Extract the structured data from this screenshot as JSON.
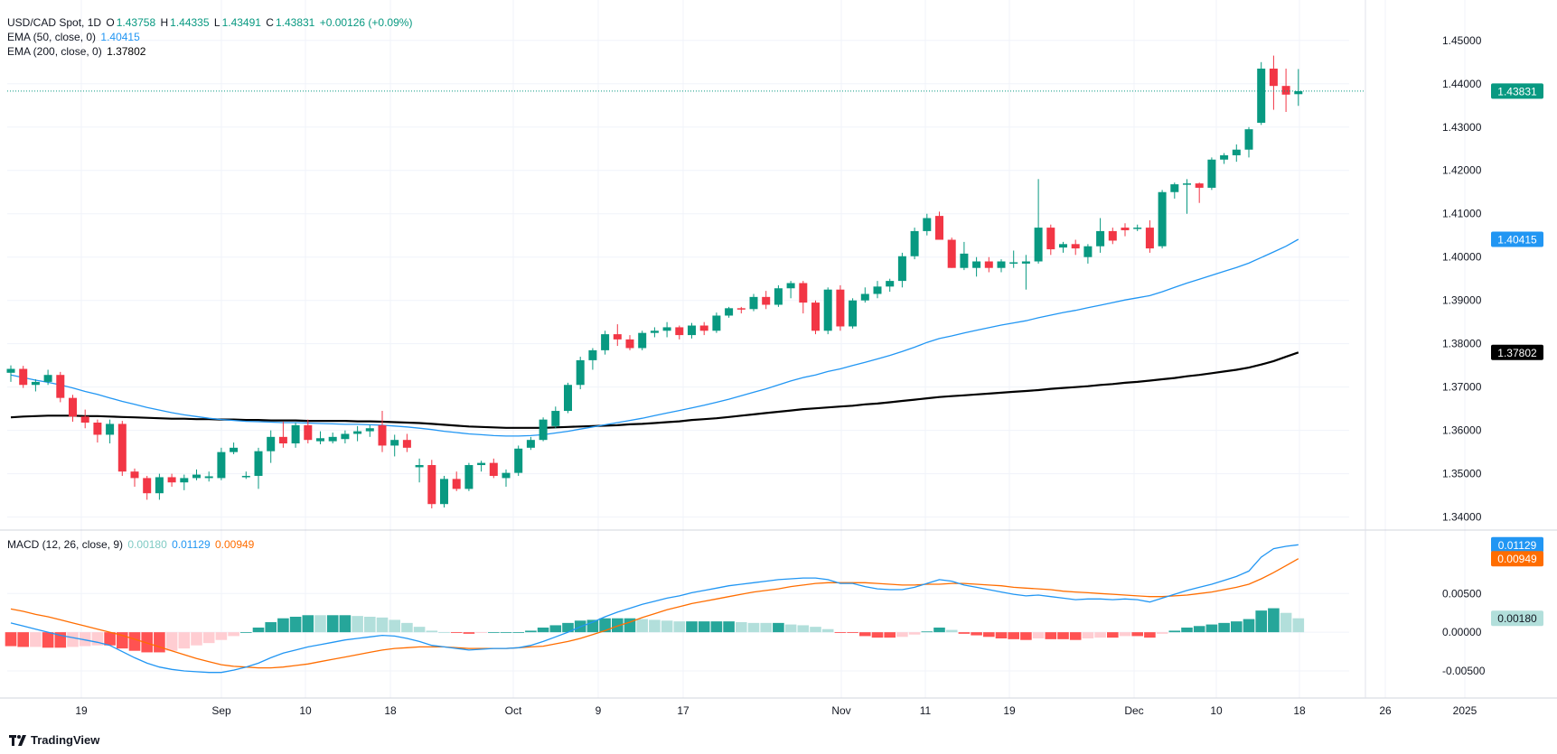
{
  "legend": {
    "symbol": "USD/CAD Spot, 1D",
    "o_label": "O",
    "o": "1.43758",
    "h_label": "H",
    "h": "1.44335",
    "l_label": "L",
    "l": "1.43491",
    "c_label": "C",
    "c": "1.43831",
    "change": "+0.00126 (+0.09%)",
    "ema50_label": "EMA (50, close, 0)",
    "ema50": "1.40415",
    "ema200_label": "EMA (200, close, 0)",
    "ema200": "1.37802",
    "macd_label": "MACD (12, 26, close, 9)",
    "macd_hist": "0.00180",
    "macd_line": "0.01129",
    "macd_signal": "0.00949"
  },
  "brand": "TradingView",
  "colors": {
    "up": "#089981",
    "down": "#f23645",
    "ema50": "#2196f3",
    "ema200": "#000000",
    "macd": "#2196f3",
    "signal": "#ff6d00",
    "hist_up_strong": "#26a69a",
    "hist_up_weak": "#b2dfdb",
    "hist_down_strong": "#ff5252",
    "hist_down_weak": "#ffcdd2"
  },
  "chart_data": [
    {
      "type": "candlestick",
      "title": "USD/CAD Spot, 1D",
      "x_ticks": [
        "19",
        "Sep",
        "10",
        "18",
        "Oct",
        "9",
        "17",
        "Nov",
        "11",
        "19",
        "Dec",
        "10",
        "18",
        "26",
        "2025"
      ],
      "y_ticks": [
        "1.34000",
        "1.35000",
        "1.36000",
        "1.37000",
        "1.38000",
        "1.39000",
        "1.40000",
        "1.41000",
        "1.42000",
        "1.43000",
        "1.44000",
        "1.45000"
      ],
      "ylim": [
        1.337,
        1.4535
      ],
      "last_price": "1.43831",
      "ohlc": [
        [
          1.3733,
          1.375,
          1.3712,
          1.3742
        ],
        [
          1.3742,
          1.3749,
          1.3698,
          1.3705
        ],
        [
          1.3705,
          1.3718,
          1.369,
          1.3712
        ],
        [
          1.3712,
          1.374,
          1.3705,
          1.3728
        ],
        [
          1.3728,
          1.3735,
          1.3665,
          1.3675
        ],
        [
          1.3675,
          1.3682,
          1.362,
          1.3632
        ],
        [
          1.3632,
          1.3648,
          1.3605,
          1.3618
        ],
        [
          1.3618,
          1.3625,
          1.3572,
          1.359
        ],
        [
          1.359,
          1.3625,
          1.357,
          1.3615
        ],
        [
          1.3615,
          1.3622,
          1.3495,
          1.3505
        ],
        [
          1.3505,
          1.3512,
          1.347,
          1.349
        ],
        [
          1.349,
          1.3495,
          1.344,
          1.3455
        ],
        [
          1.3455,
          1.35,
          1.344,
          1.3492
        ],
        [
          1.3492,
          1.35,
          1.347,
          1.348
        ],
        [
          1.348,
          1.3498,
          1.3462,
          1.349
        ],
        [
          1.349,
          1.351,
          1.3485,
          1.3498
        ],
        [
          1.349,
          1.3505,
          1.3482,
          1.3494
        ],
        [
          1.349,
          1.356,
          1.3485,
          1.355
        ],
        [
          1.355,
          1.3572,
          1.3545,
          1.356
        ],
        [
          1.3495,
          1.3505,
          1.3488,
          1.3495
        ],
        [
          1.3495,
          1.356,
          1.3465,
          1.3552
        ],
        [
          1.3552,
          1.36,
          1.3525,
          1.3585
        ],
        [
          1.3585,
          1.362,
          1.356,
          1.357
        ],
        [
          1.357,
          1.3618,
          1.356,
          1.3612
        ],
        [
          1.3612,
          1.3625,
          1.357,
          1.3578
        ],
        [
          1.3575,
          1.3598,
          1.3568,
          1.3582
        ],
        [
          1.3575,
          1.3595,
          1.357,
          1.3585
        ],
        [
          1.358,
          1.36,
          1.357,
          1.3592
        ],
        [
          1.3592,
          1.361,
          1.3575,
          1.3598
        ],
        [
          1.3598,
          1.3612,
          1.3585,
          1.3605
        ],
        [
          1.3612,
          1.3645,
          1.355,
          1.3565
        ],
        [
          1.3565,
          1.359,
          1.354,
          1.3578
        ],
        [
          1.3578,
          1.3592,
          1.355,
          1.356
        ],
        [
          1.3515,
          1.3535,
          1.348,
          1.352
        ],
        [
          1.352,
          1.3532,
          1.342,
          1.343
        ],
        [
          1.343,
          1.3495,
          1.3422,
          1.3488
        ],
        [
          1.3488,
          1.3505,
          1.346,
          1.3465
        ],
        [
          1.3465,
          1.3525,
          1.346,
          1.352
        ],
        [
          1.352,
          1.353,
          1.3505,
          1.3525
        ],
        [
          1.3525,
          1.3535,
          1.349,
          1.3495
        ],
        [
          1.349,
          1.351,
          1.347,
          1.3502
        ],
        [
          1.3502,
          1.3565,
          1.3495,
          1.3558
        ],
        [
          1.356,
          1.3585,
          1.3555,
          1.3578
        ],
        [
          1.3578,
          1.363,
          1.3575,
          1.3625
        ],
        [
          1.361,
          1.3655,
          1.3605,
          1.3645
        ],
        [
          1.3645,
          1.371,
          1.364,
          1.3705
        ],
        [
          1.3705,
          1.377,
          1.3695,
          1.3762
        ],
        [
          1.3762,
          1.379,
          1.374,
          1.3785
        ],
        [
          1.3785,
          1.383,
          1.3775,
          1.3822
        ],
        [
          1.3822,
          1.3845,
          1.3795,
          1.381
        ],
        [
          1.381,
          1.382,
          1.3785,
          1.379
        ],
        [
          1.379,
          1.383,
          1.3785,
          1.3825
        ],
        [
          1.3825,
          1.3838,
          1.3815,
          1.383
        ],
        [
          1.383,
          1.385,
          1.3815,
          1.3838
        ],
        [
          1.3838,
          1.3842,
          1.381,
          1.382
        ],
        [
          1.382,
          1.3848,
          1.3812,
          1.3842
        ],
        [
          1.3842,
          1.385,
          1.382,
          1.383
        ],
        [
          1.383,
          1.3872,
          1.3825,
          1.3865
        ],
        [
          1.3865,
          1.3885,
          1.386,
          1.3882
        ],
        [
          1.3882,
          1.3885,
          1.387,
          1.388
        ],
        [
          1.388,
          1.3915,
          1.3875,
          1.3908
        ],
        [
          1.3908,
          1.3922,
          1.388,
          1.389
        ],
        [
          1.389,
          1.3935,
          1.3885,
          1.3928
        ],
        [
          1.3928,
          1.3945,
          1.3905,
          1.394
        ],
        [
          1.394,
          1.3945,
          1.387,
          1.3895
        ],
        [
          1.3895,
          1.39,
          1.3822,
          1.383
        ],
        [
          1.383,
          1.393,
          1.3822,
          1.3925
        ],
        [
          1.3925,
          1.3935,
          1.383,
          1.384
        ],
        [
          1.384,
          1.3905,
          1.3835,
          1.39
        ],
        [
          1.39,
          1.393,
          1.3895,
          1.3915
        ],
        [
          1.3915,
          1.3945,
          1.3905,
          1.3932
        ],
        [
          1.3932,
          1.395,
          1.392,
          1.3945
        ],
        [
          1.3945,
          1.401,
          1.393,
          1.4002
        ],
        [
          1.4002,
          1.4068,
          1.3995,
          1.406
        ],
        [
          1.406,
          1.41,
          1.405,
          1.409
        ],
        [
          1.4095,
          1.4105,
          1.404,
          1.404
        ],
        [
          1.404,
          1.4045,
          1.3975,
          1.3975
        ],
        [
          1.3975,
          1.4035,
          1.397,
          1.4008
        ],
        [
          1.3975,
          1.4,
          1.3955,
          1.399
        ],
        [
          1.399,
          1.4,
          1.3965,
          1.3975
        ],
        [
          1.3975,
          1.3995,
          1.3965,
          1.399
        ],
        [
          1.3985,
          1.4015,
          1.3975,
          1.3988
        ],
        [
          1.3985,
          1.4005,
          1.3925,
          1.399
        ],
        [
          1.399,
          1.418,
          1.3985,
          1.4068
        ],
        [
          1.4068,
          1.4075,
          1.4005,
          1.4018
        ],
        [
          1.4022,
          1.4035,
          1.401,
          1.403
        ],
        [
          1.403,
          1.404,
          1.4005,
          1.402
        ],
        [
          1.4,
          1.403,
          1.3985,
          1.4025
        ],
        [
          1.4025,
          1.409,
          1.401,
          1.406
        ],
        [
          1.406,
          1.4068,
          1.403,
          1.4038
        ],
        [
          1.4068,
          1.4078,
          1.4048,
          1.4062
        ],
        [
          1.4065,
          1.4075,
          1.406,
          1.4068
        ],
        [
          1.4068,
          1.4085,
          1.401,
          1.402
        ],
        [
          1.4025,
          1.4155,
          1.402,
          1.415
        ],
        [
          1.415,
          1.4172,
          1.4135,
          1.4168
        ],
        [
          1.4168,
          1.418,
          1.41,
          1.417
        ],
        [
          1.417,
          1.4172,
          1.4125,
          1.416
        ],
        [
          1.416,
          1.423,
          1.4155,
          1.4225
        ],
        [
          1.4225,
          1.424,
          1.4215,
          1.4235
        ],
        [
          1.4235,
          1.426,
          1.422,
          1.4248
        ],
        [
          1.4248,
          1.43,
          1.423,
          1.4295
        ],
        [
          1.431,
          1.445,
          1.4305,
          1.4435
        ],
        [
          1.4435,
          1.4465,
          1.434,
          1.4395
        ],
        [
          1.4395,
          1.4435,
          1.4335,
          1.4375
        ],
        [
          1.4376,
          1.4434,
          1.4349,
          1.4383
        ]
      ],
      "ema50_label": "EMA (50, close, 0)",
      "ema50": [
        1.3728,
        1.3722,
        1.3716,
        1.3711,
        1.3705,
        1.3698,
        1.369,
        1.3683,
        1.3675,
        1.3667,
        1.366,
        1.3653,
        1.3647,
        1.3641,
        1.3636,
        1.3632,
        1.3628,
        1.3625,
        1.3623,
        1.3621,
        1.362,
        1.3619,
        1.3618,
        1.3618,
        1.3617,
        1.3616,
        1.3615,
        1.3614,
        1.3614,
        1.3613,
        1.3612,
        1.361,
        1.3608,
        1.3605,
        1.3602,
        1.3598,
        1.3595,
        1.3592,
        1.359,
        1.3588,
        1.3587,
        1.3587,
        1.3588,
        1.359,
        1.3594,
        1.3598,
        1.3603,
        1.3608,
        1.3613,
        1.3618,
        1.3623,
        1.3628,
        1.3634,
        1.364,
        1.3646,
        1.3652,
        1.3658,
        1.3665,
        1.3672,
        1.368,
        1.3688,
        1.3696,
        1.3705,
        1.3714,
        1.3722,
        1.3728,
        1.3736,
        1.3742,
        1.375,
        1.3757,
        1.3765,
        1.3773,
        1.3782,
        1.3792,
        1.3803,
        1.3812,
        1.3818,
        1.3825,
        1.3831,
        1.3837,
        1.3843,
        1.3848,
        1.3853,
        1.386,
        1.3866,
        1.3872,
        1.3877,
        1.3883,
        1.3889,
        1.3895,
        1.3901,
        1.3906,
        1.3911,
        1.392,
        1.393,
        1.394,
        1.3949,
        1.3958,
        1.3967,
        1.3976,
        1.3986,
        1.3999,
        1.4012,
        1.4025,
        1.4041
      ],
      "ema200_label": "EMA (200, close, 0)",
      "ema200": [
        1.363,
        1.3632,
        1.3633,
        1.3634,
        1.3634,
        1.3634,
        1.3633,
        1.3633,
        1.3632,
        1.3631,
        1.363,
        1.3629,
        1.3628,
        1.3627,
        1.3627,
        1.3626,
        1.3626,
        1.3625,
        1.3625,
        1.3624,
        1.3624,
        1.3623,
        1.3623,
        1.3623,
        1.3622,
        1.3622,
        1.3622,
        1.3622,
        1.3621,
        1.3621,
        1.362,
        1.3619,
        1.3618,
        1.3617,
        1.3615,
        1.3613,
        1.3611,
        1.3609,
        1.3608,
        1.3607,
        1.3606,
        1.3606,
        1.3606,
        1.3606,
        1.3607,
        1.3608,
        1.3609,
        1.361,
        1.3611,
        1.3612,
        1.3614,
        1.3615,
        1.3617,
        1.3619,
        1.3621,
        1.3624,
        1.3626,
        1.3628,
        1.3631,
        1.3634,
        1.3637,
        1.364,
        1.3643,
        1.3646,
        1.3649,
        1.3651,
        1.3653,
        1.3655,
        1.3657,
        1.366,
        1.3662,
        1.3665,
        1.3668,
        1.3671,
        1.3674,
        1.3677,
        1.3679,
        1.3681,
        1.3683,
        1.3685,
        1.3687,
        1.3689,
        1.3691,
        1.3693,
        1.3696,
        1.3698,
        1.37,
        1.3702,
        1.3705,
        1.3707,
        1.371,
        1.3712,
        1.3715,
        1.3718,
        1.3721,
        1.3725,
        1.3728,
        1.3732,
        1.3736,
        1.374,
        1.3745,
        1.3752,
        1.376,
        1.377,
        1.378
      ],
      "ema50_last": "1.40415",
      "ema200_last": "1.37802"
    },
    {
      "type": "histogram+line",
      "title": "MACD (12, 26, close, 9)",
      "y_ticks": [
        "-0.00500",
        "0.00000",
        "0.00500"
      ],
      "ylim": [
        -0.0085,
        0.0132
      ],
      "macd": [
        0.0012,
        0.0008,
        0.0004,
        0.0,
        -0.0004,
        -0.0007,
        -0.001,
        -0.0013,
        -0.0017,
        -0.0025,
        -0.0033,
        -0.004,
        -0.0045,
        -0.0048,
        -0.005,
        -0.0051,
        -0.0052,
        -0.0052,
        -0.0049,
        -0.0045,
        -0.004,
        -0.0033,
        -0.0027,
        -0.0023,
        -0.0019,
        -0.0016,
        -0.0013,
        -0.001,
        -0.0008,
        -0.0006,
        -0.0004,
        -0.0005,
        -0.0008,
        -0.0012,
        -0.0017,
        -0.0019,
        -0.0021,
        -0.0023,
        -0.0022,
        -0.0021,
        -0.0021,
        -0.002,
        -0.0017,
        -0.0012,
        -0.0006,
        0.0,
        0.0007,
        0.0013,
        0.002,
        0.0026,
        0.0031,
        0.0036,
        0.004,
        0.0044,
        0.0047,
        0.0051,
        0.0054,
        0.0057,
        0.006,
        0.0062,
        0.0064,
        0.0066,
        0.0068,
        0.0069,
        0.007,
        0.007,
        0.0068,
        0.0063,
        0.0063,
        0.0059,
        0.0056,
        0.0055,
        0.0055,
        0.0058,
        0.0063,
        0.0068,
        0.0066,
        0.0061,
        0.0058,
        0.0055,
        0.0052,
        0.0049,
        0.0047,
        0.0048,
        0.0046,
        0.0044,
        0.0042,
        0.0043,
        0.0043,
        0.0042,
        0.0043,
        0.0042,
        0.0039,
        0.0044,
        0.0049,
        0.0054,
        0.0058,
        0.0062,
        0.0067,
        0.0072,
        0.0079,
        0.0097,
        0.0108,
        0.0111,
        0.0113
      ],
      "signal": [
        0.003,
        0.0027,
        0.0023,
        0.002,
        0.0016,
        0.0012,
        0.0008,
        0.0004,
        0.0,
        -0.0004,
        -0.0009,
        -0.0014,
        -0.0019,
        -0.0024,
        -0.0029,
        -0.0034,
        -0.0038,
        -0.0042,
        -0.0044,
        -0.0045,
        -0.0046,
        -0.0046,
        -0.0045,
        -0.0043,
        -0.0041,
        -0.0038,
        -0.0035,
        -0.0032,
        -0.0029,
        -0.0026,
        -0.0023,
        -0.0021,
        -0.002,
        -0.0019,
        -0.0019,
        -0.0019,
        -0.002,
        -0.0021,
        -0.0021,
        -0.0021,
        -0.0021,
        -0.002,
        -0.0019,
        -0.0018,
        -0.0015,
        -0.0012,
        -0.0008,
        -0.0003,
        0.0002,
        0.0008,
        0.0013,
        0.0019,
        0.0024,
        0.0029,
        0.0033,
        0.0037,
        0.004,
        0.0043,
        0.0046,
        0.0049,
        0.0052,
        0.0054,
        0.0056,
        0.0059,
        0.0061,
        0.0063,
        0.0064,
        0.0064,
        0.0064,
        0.0064,
        0.0063,
        0.0062,
        0.0061,
        0.0061,
        0.0062,
        0.0062,
        0.0063,
        0.0063,
        0.0062,
        0.0061,
        0.006,
        0.0058,
        0.0057,
        0.0056,
        0.0055,
        0.0053,
        0.0052,
        0.0051,
        0.005,
        0.0049,
        0.0048,
        0.0047,
        0.0046,
        0.0046,
        0.0047,
        0.0048,
        0.005,
        0.0052,
        0.0055,
        0.0058,
        0.0062,
        0.0069,
        0.0077,
        0.0086,
        0.0095
      ],
      "last_macd": "0.01129",
      "last_signal": "0.00949",
      "last_hist": "0.00180"
    }
  ]
}
